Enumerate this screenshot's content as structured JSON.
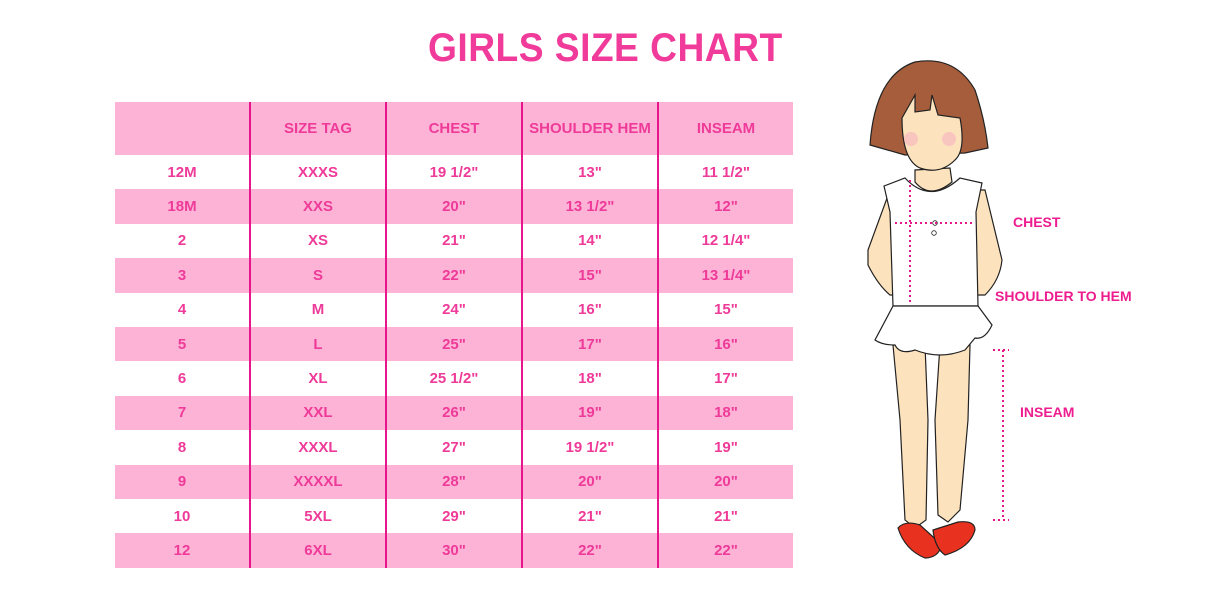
{
  "title": "GIRLS SIZE CHART",
  "table": {
    "headers": [
      "",
      "SIZE TAG",
      "CHEST",
      "SHOULDER HEM",
      "INSEAM"
    ],
    "rows": [
      [
        "12M",
        "XXXS",
        "19 1/2\"",
        "13\"",
        "11 1/2\""
      ],
      [
        "18M",
        "XXS",
        "20\"",
        "13 1/2\"",
        "12\""
      ],
      [
        "2",
        "XS",
        "21\"",
        "14\"",
        "12 1/4\""
      ],
      [
        "3",
        "S",
        "22\"",
        "15\"",
        "13 1/4\""
      ],
      [
        "4",
        "M",
        "24\"",
        "16\"",
        "15\""
      ],
      [
        "5",
        "L",
        "25\"",
        "17\"",
        "16\""
      ],
      [
        "6",
        "XL",
        "25 1/2\"",
        "18\"",
        "17\""
      ],
      [
        "7",
        "XXL",
        "26\"",
        "19\"",
        "18\""
      ],
      [
        "8",
        "XXXL",
        "27\"",
        "19 1/2\"",
        "19\""
      ],
      [
        "9",
        "XXXXL",
        "28\"",
        "20\"",
        "20\""
      ],
      [
        "10",
        "5XL",
        "29\"",
        "21\"",
        "21\""
      ],
      [
        "12",
        "6XL",
        "30\"",
        "22\"",
        "22\""
      ]
    ]
  },
  "illustration": {
    "labels": {
      "chest": "CHEST",
      "shoulder": "SHOULDER TO HEM",
      "inseam": "INSEAM"
    }
  },
  "colors": {
    "accent": "#f13b9b",
    "row_pink": "#fdb3d6",
    "divider": "#e8168c"
  }
}
